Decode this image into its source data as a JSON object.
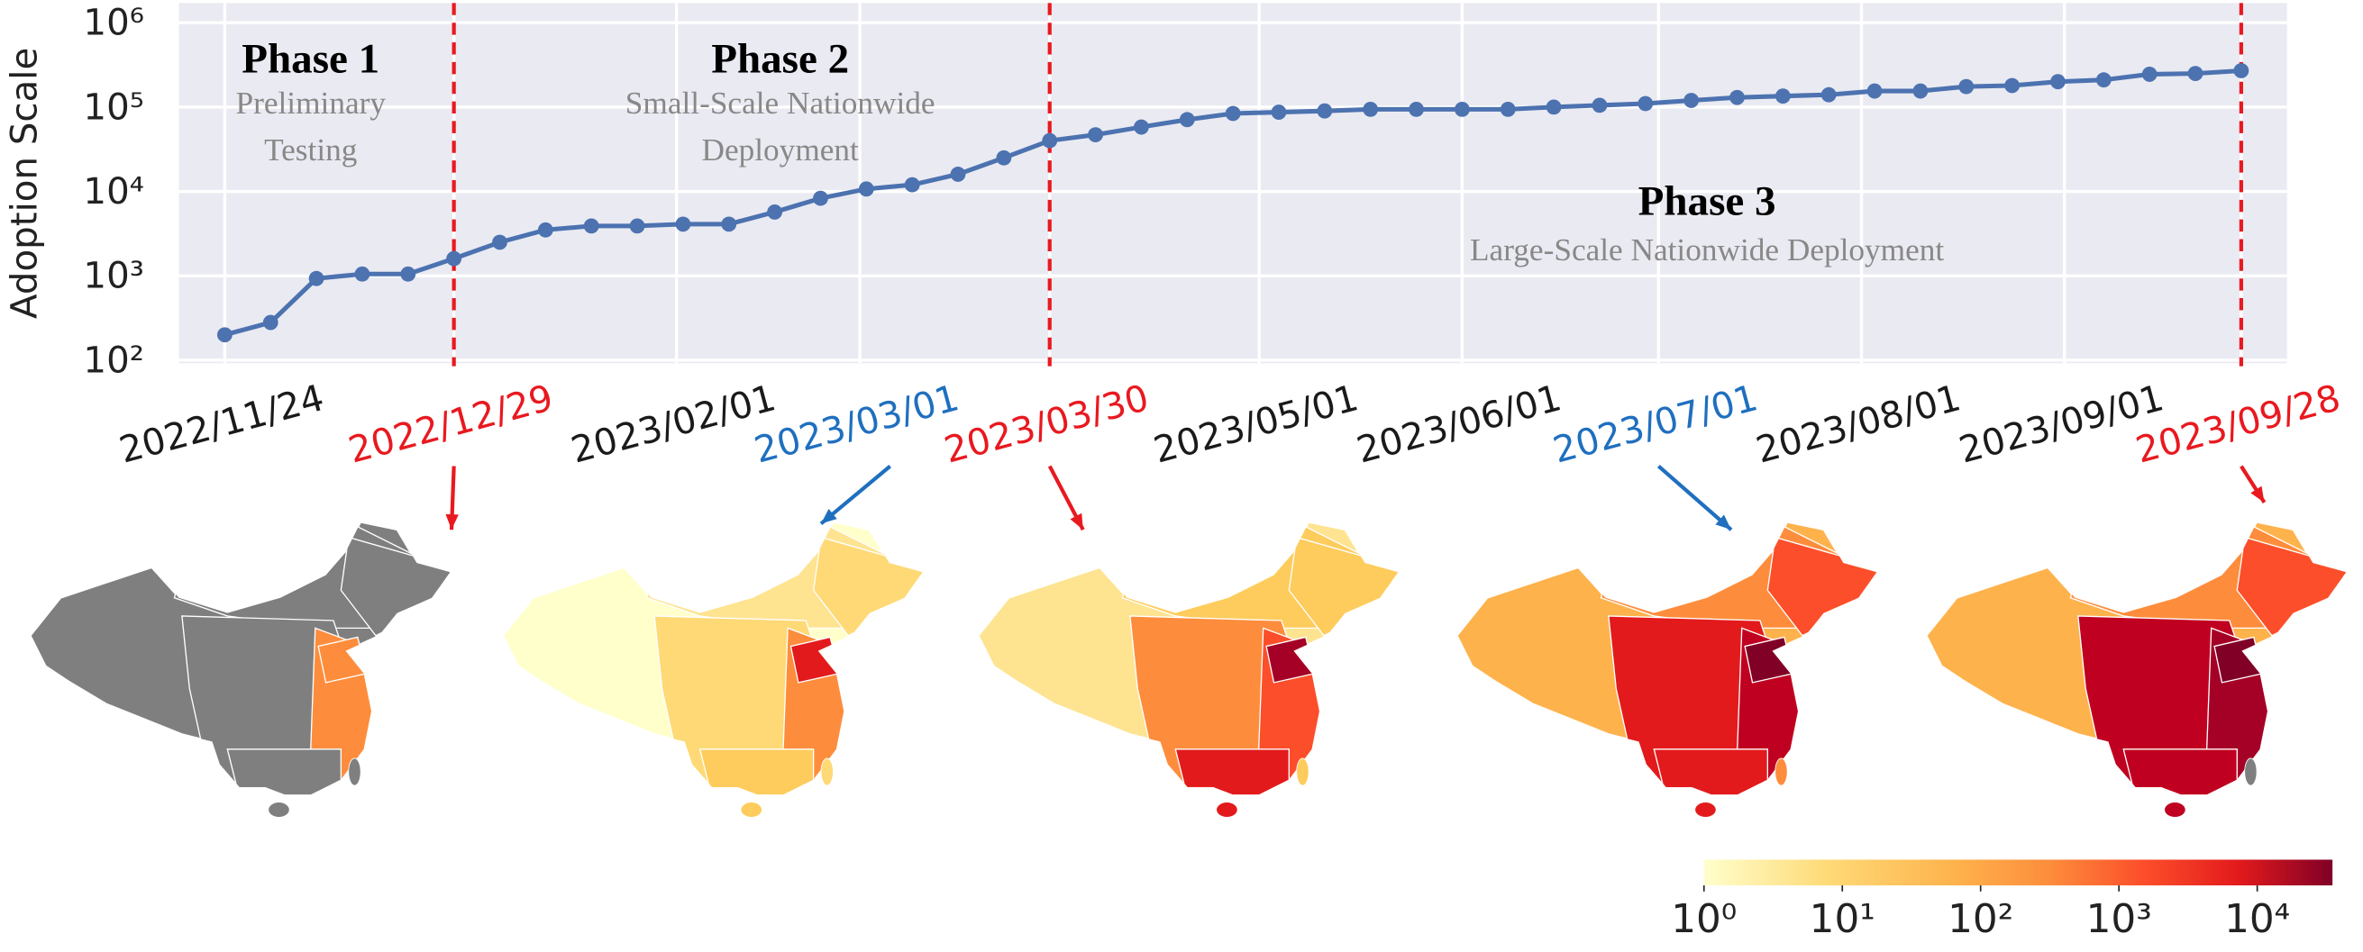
{
  "chart_data": {
    "type": "line",
    "y_label": "Adoption Scale",
    "x": [
      "2022/11/24",
      "2022/12/01",
      "2022/12/08",
      "2022/12/15",
      "2022/12/22",
      "2022/12/29",
      "2023/01/05",
      "2023/01/12",
      "2023/01/19",
      "2023/01/26",
      "2023/02/02",
      "2023/02/09",
      "2023/02/16",
      "2023/02/23",
      "2023/03/02",
      "2023/03/09",
      "2023/03/16",
      "2023/03/23",
      "2023/03/30",
      "2023/04/06",
      "2023/04/13",
      "2023/04/20",
      "2023/04/27",
      "2023/05/04",
      "2023/05/11",
      "2023/05/18",
      "2023/05/25",
      "2023/06/01",
      "2023/06/08",
      "2023/06/15",
      "2023/06/22",
      "2023/06/29",
      "2023/07/06",
      "2023/07/13",
      "2023/07/20",
      "2023/07/27",
      "2023/08/03",
      "2023/08/10",
      "2023/08/17",
      "2023/08/24",
      "2023/08/31",
      "2023/09/07",
      "2023/09/14",
      "2023/09/21",
      "2023/09/28"
    ],
    "values": [
      200,
      280,
      930,
      1050,
      1050,
      1600,
      2500,
      3500,
      3900,
      3900,
      4100,
      4100,
      5700,
      8300,
      10700,
      12000,
      16000,
      25000,
      40000,
      47000,
      58000,
      71000,
      84000,
      87000,
      90000,
      94000,
      94000,
      94000,
      94000,
      100000,
      105000,
      110000,
      120000,
      130000,
      135000,
      140000,
      155000,
      155000,
      175000,
      180000,
      200000,
      210000,
      245000,
      250000,
      270000
    ],
    "color": "#4c72b0",
    "log_y": true,
    "grid": true,
    "ylim": [
      100,
      1000000
    ],
    "yticks": [
      {
        "value": 100,
        "label": "10²"
      },
      {
        "value": 1000,
        "label": "10³"
      },
      {
        "value": 10000,
        "label": "10⁴"
      },
      {
        "value": 100000,
        "label": "10⁵"
      },
      {
        "value": 1000000,
        "label": "10⁶"
      }
    ],
    "xlim": [
      "2022/11/17",
      "2023/10/05"
    ],
    "xticks": [
      "2022/11/24",
      "2022/12/29",
      "2023/02/01",
      "2023/03/01",
      "2023/03/30",
      "2023/05/01",
      "2023/06/01",
      "2023/07/01",
      "2023/08/01",
      "2023/09/01",
      "2023/09/28"
    ],
    "xtick_colors": [
      "#1a1a1a",
      "#e8191f",
      "#1a1a1a",
      "#1f6fbf",
      "#e8191f",
      "#1a1a1a",
      "#1a1a1a",
      "#1f6fbf",
      "#1a1a1a",
      "#1a1a1a",
      "#e8191f"
    ],
    "phase_boundaries": [
      "2022/12/29",
      "2023/03/30",
      "2023/09/28"
    ],
    "boundary_color": "#e8191f",
    "annotations": [
      {
        "title": "Phase 1",
        "description": [
          "Preliminary",
          "Testing"
        ]
      },
      {
        "title": "Phase 2",
        "description": [
          "Small-Scale Nationwide",
          "Deployment"
        ]
      },
      {
        "title": "Phase 3",
        "description": [
          "Large-Scale Nationwide Deployment"
        ]
      }
    ],
    "colorbar": {
      "log": true,
      "clim": [
        1,
        35000
      ],
      "ticks": [
        {
          "value": 1,
          "label": "10⁰"
        },
        {
          "value": 10,
          "label": "10¹"
        },
        {
          "value": 100,
          "label": "10²"
        },
        {
          "value": 1000,
          "label": "10³"
        },
        {
          "value": 10000,
          "label": "10⁴"
        }
      ]
    }
  }
}
